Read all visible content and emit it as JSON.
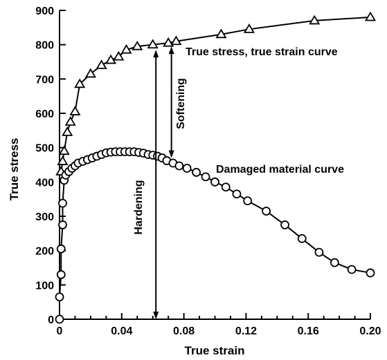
{
  "chart_data": {
    "type": "line",
    "xlabel": "True strain",
    "ylabel": "True stress",
    "xlim": [
      0,
      0.2
    ],
    "ylim": [
      0,
      900
    ],
    "xticks": [
      0,
      0.04,
      0.08,
      0.12,
      0.16,
      0.2
    ],
    "xtick_labels": [
      "0",
      "0.04",
      "0.08",
      "0.12",
      "0.16",
      "0.20"
    ],
    "yticks": [
      0,
      100,
      200,
      300,
      400,
      500,
      600,
      700,
      800,
      900
    ],
    "ytick_labels": [
      "0",
      "100",
      "200",
      "300",
      "400",
      "500",
      "600",
      "700",
      "800",
      "900"
    ],
    "grid": false,
    "series": [
      {
        "name": "True stress, true strain curve",
        "marker": "triangle",
        "x": [
          0.001,
          0.002,
          0.003,
          0.005,
          0.007,
          0.01,
          0.013,
          0.02,
          0.027,
          0.033,
          0.038,
          0.043,
          0.05,
          0.06,
          0.07,
          0.075,
          0.104,
          0.122,
          0.164,
          0.2
        ],
        "y": [
          430,
          460,
          490,
          545,
          575,
          605,
          685,
          715,
          740,
          755,
          765,
          785,
          795,
          800,
          805,
          810,
          830,
          845,
          870,
          880
        ]
      },
      {
        "name": "Damaged material curve",
        "marker": "circle",
        "x": [
          0,
          0,
          0.001,
          0.001,
          0.002,
          0.002,
          0.003,
          0.004,
          0.006,
          0.008,
          0.01,
          0.012,
          0.015,
          0.018,
          0.021,
          0.024,
          0.027,
          0.03,
          0.033,
          0.036,
          0.039,
          0.042,
          0.045,
          0.048,
          0.051,
          0.054,
          0.057,
          0.06,
          0.063,
          0.066,
          0.069,
          0.073,
          0.077,
          0.082,
          0.088,
          0.094,
          0.1,
          0.107,
          0.114,
          0.121,
          0.133,
          0.145,
          0.156,
          0.167,
          0.177,
          0.188,
          0.2
        ],
        "y": [
          0,
          65,
          130,
          205,
          275,
          338,
          405,
          420,
          430,
          440,
          447,
          455,
          460,
          465,
          470,
          475,
          480,
          485,
          487,
          488,
          488,
          488,
          488,
          488,
          486,
          484,
          480,
          478,
          475,
          470,
          462,
          455,
          447,
          440,
          428,
          415,
          400,
          385,
          365,
          345,
          315,
          275,
          235,
          195,
          165,
          145,
          135
        ]
      }
    ],
    "annotations": [
      {
        "text": "True stress, true strain curve"
      },
      {
        "text": "Damaged material curve"
      },
      {
        "text": "Softening",
        "x": 0.072,
        "y_from": 470,
        "y_to": 795
      },
      {
        "text": "Hardening",
        "x": 0.062,
        "y_from": 0,
        "y_to": 785
      }
    ]
  }
}
